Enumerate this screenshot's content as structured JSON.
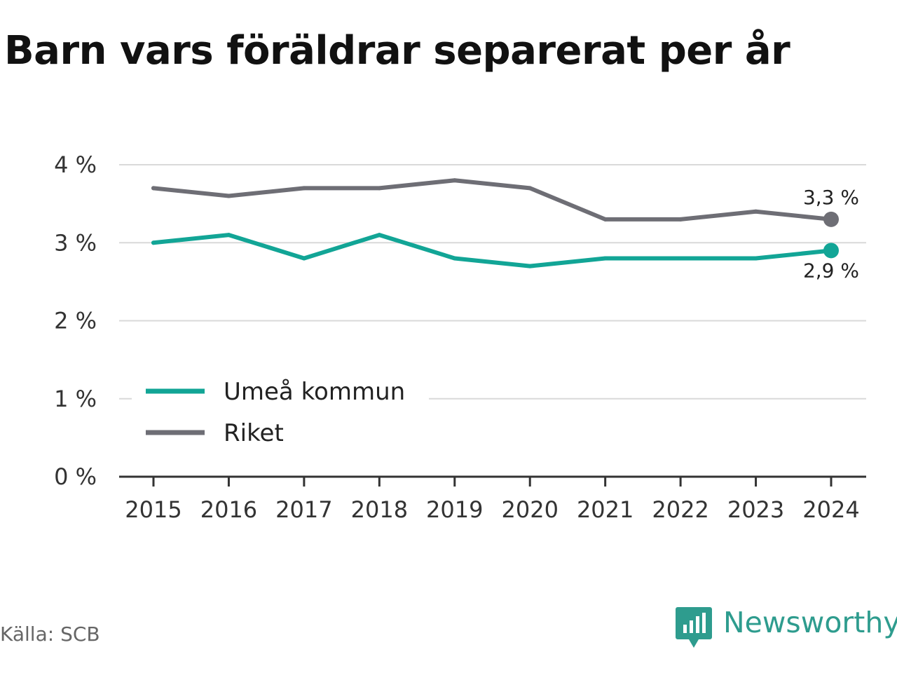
{
  "title": "Barn vars föräldrar separerat per år",
  "source": "Källa: SCB",
  "brand": {
    "name": "Newsworthy",
    "icon": "newsworthy-logo-icon",
    "color": "#2e9c8e"
  },
  "chart_data": {
    "type": "line",
    "title": "Barn vars föräldrar separerat per år",
    "xlabel": "",
    "ylabel": "",
    "categories": [
      "2015",
      "2016",
      "2017",
      "2018",
      "2019",
      "2020",
      "2021",
      "2022",
      "2023",
      "2024"
    ],
    "ylim": [
      0,
      4
    ],
    "yticks": [
      0,
      1,
      2,
      3,
      4
    ],
    "ytick_labels": [
      "0 %",
      "1 %",
      "2 %",
      "3 %",
      "4 %"
    ],
    "grid": true,
    "legend_position": "bottom-left",
    "series": [
      {
        "name": "Umeå kommun",
        "color": "#12a596",
        "values": [
          3.0,
          3.1,
          2.8,
          3.1,
          2.8,
          2.7,
          2.8,
          2.8,
          2.8,
          2.9
        ],
        "end_label": "2,9 %"
      },
      {
        "name": "Riket",
        "color": "#6e6e75",
        "values": [
          3.7,
          3.6,
          3.7,
          3.7,
          3.8,
          3.7,
          3.3,
          3.3,
          3.4,
          3.3
        ],
        "end_label": "3,3 %"
      }
    ]
  }
}
